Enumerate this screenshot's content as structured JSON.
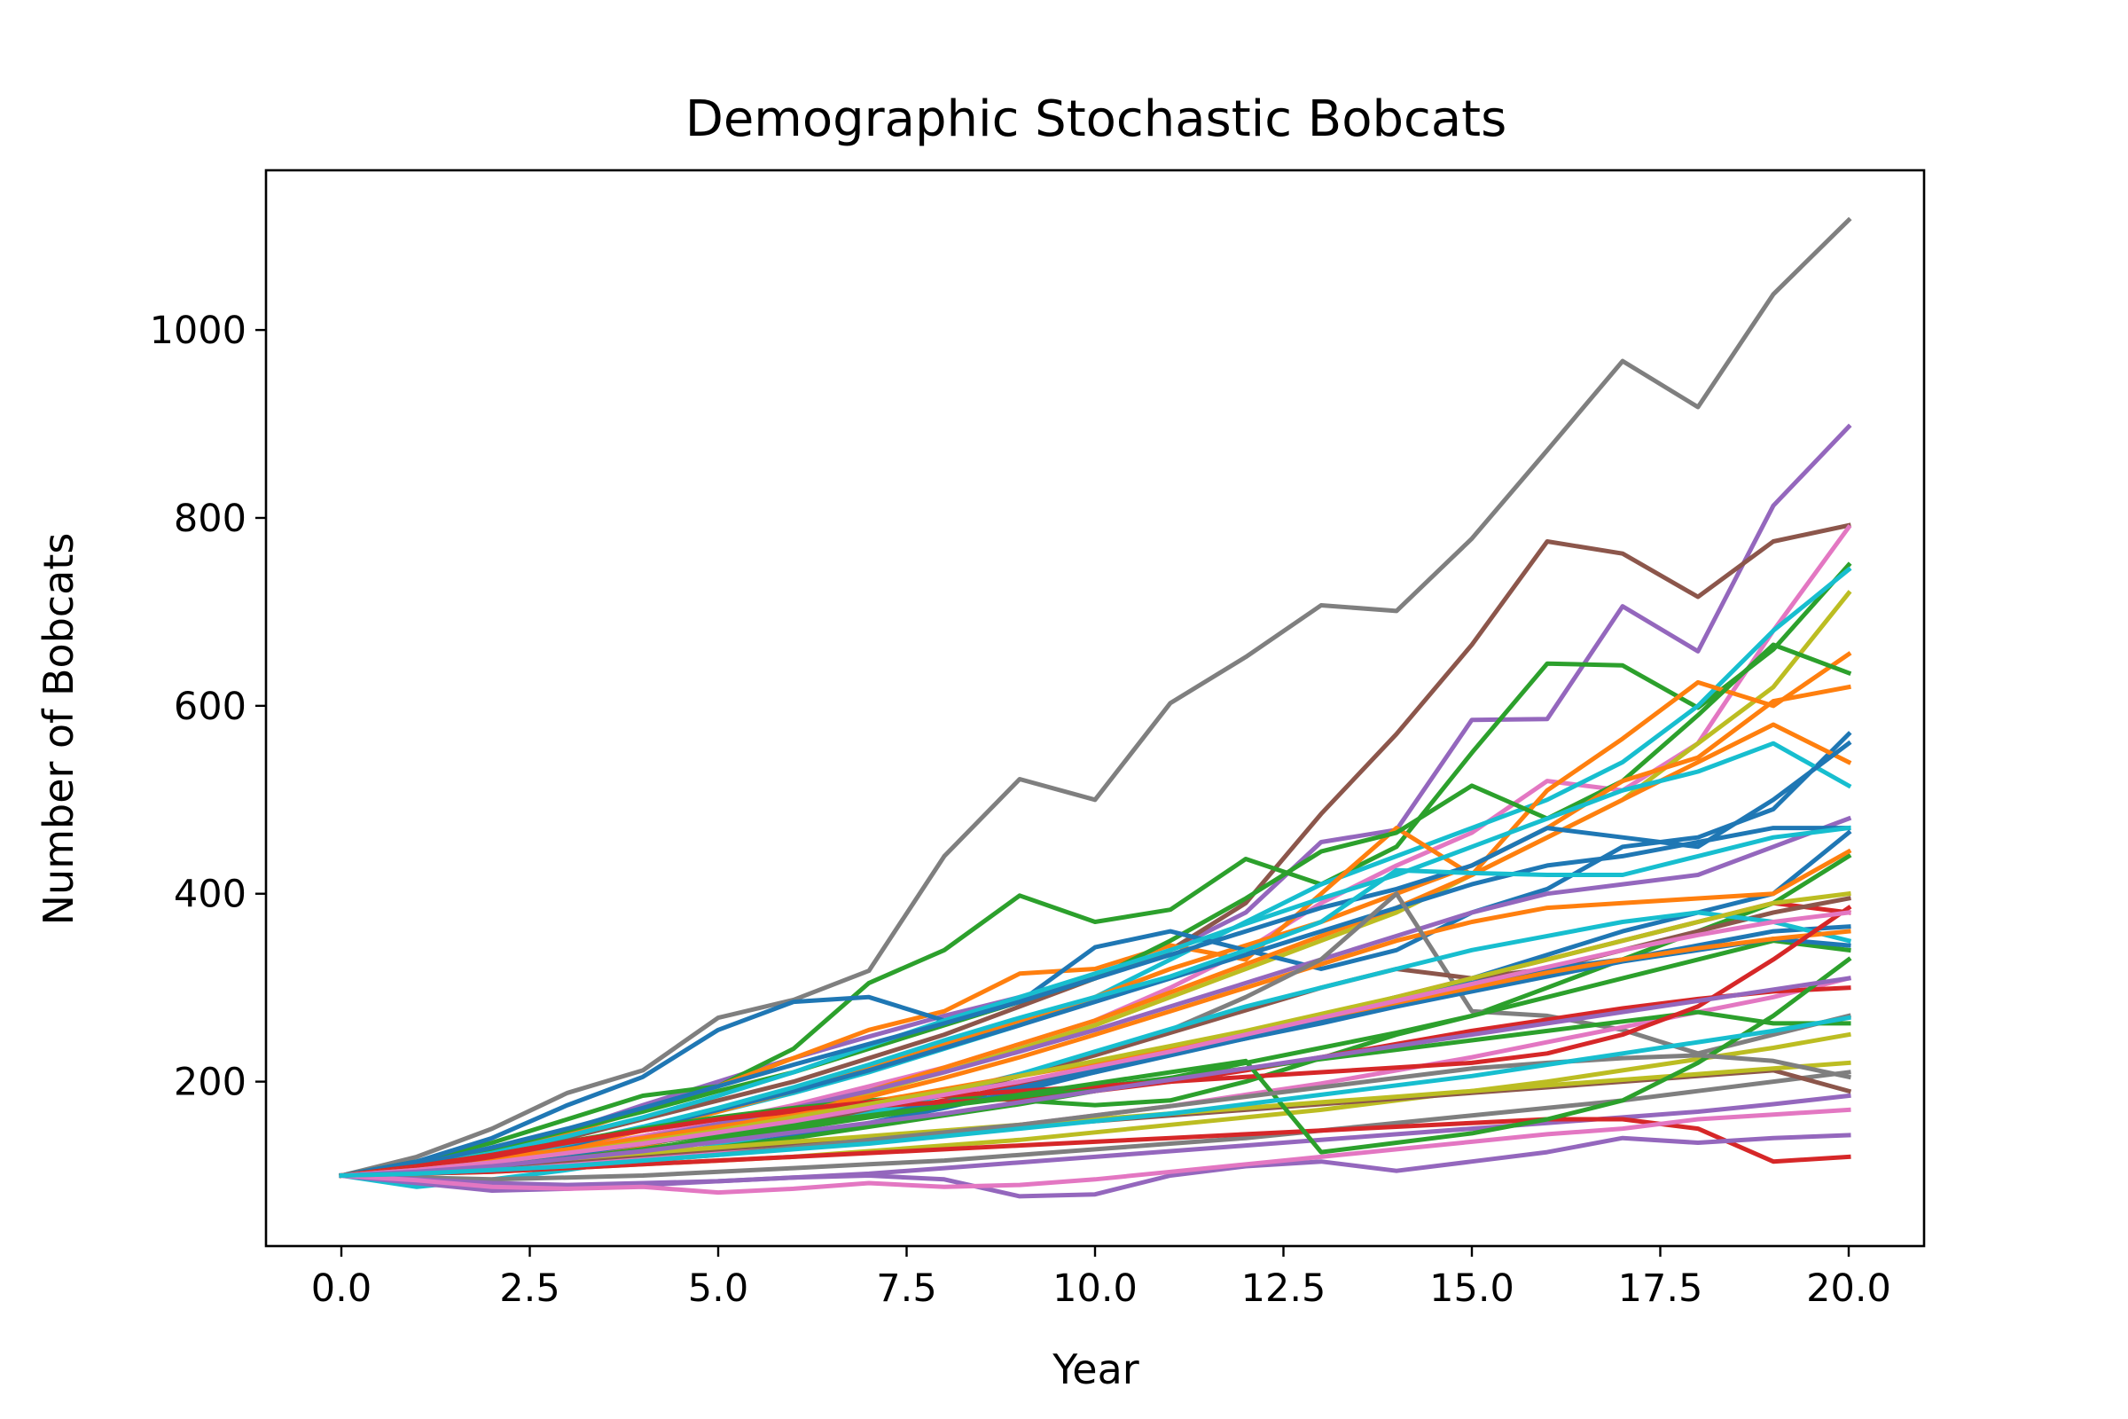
{
  "chart_data": {
    "type": "line",
    "title": "Demographic Stochastic Bobcats",
    "xlabel": "Year",
    "ylabel": "Number of Bobcats",
    "xlim": [
      -1,
      21
    ],
    "ylim": [
      25,
      1170
    ],
    "xticks": [
      0,
      2.5,
      5,
      7.5,
      10,
      12.5,
      15,
      17.5,
      20
    ],
    "xtick_labels": [
      "0.0",
      "2.5",
      "5.0",
      "7.5",
      "10.0",
      "12.5",
      "15.0",
      "17.5",
      "20.0"
    ],
    "yticks": [
      200,
      400,
      600,
      800,
      1000
    ],
    "ytick_labels": [
      "200",
      "400",
      "600",
      "800",
      "1000"
    ],
    "grid": false,
    "legend": "none",
    "x": [
      0,
      1,
      2,
      3,
      4,
      5,
      6,
      7,
      8,
      9,
      10,
      11,
      12,
      13,
      14,
      15,
      16,
      17,
      18,
      19,
      20
    ],
    "series": [
      {
        "color": "#7f7f7f",
        "values": [
          100,
          120,
          150,
          188,
          212,
          268,
          287,
          318,
          440,
          522,
          500,
          603,
          652,
          707,
          701,
          778,
          872,
          967,
          918,
          1038,
          1117
        ]
      },
      {
        "color": "#9467bd",
        "values": [
          100,
          108,
          122,
          148,
          175,
          200,
          225,
          248,
          270,
          290,
          310,
          340,
          380,
          455,
          468,
          585,
          586,
          706,
          658,
          813,
          897
        ]
      },
      {
        "color": "#8c564b",
        "values": [
          100,
          110,
          125,
          140,
          160,
          180,
          200,
          225,
          250,
          280,
          310,
          340,
          390,
          485,
          570,
          665,
          775,
          762,
          716,
          775,
          792
        ]
      },
      {
        "color": "#e377c2",
        "values": [
          100,
          105,
          115,
          128,
          142,
          158,
          175,
          195,
          215,
          240,
          265,
          300,
          340,
          390,
          430,
          465,
          520,
          510,
          560,
          680,
          790
        ]
      },
      {
        "color": "#2ca02c",
        "values": [
          100,
          115,
          135,
          160,
          185,
          195,
          235,
          305,
          340,
          398,
          370,
          383,
          437,
          410,
          450,
          550,
          645,
          643,
          598,
          660,
          750
        ]
      },
      {
        "color": "#17becf",
        "values": [
          100,
          108,
          120,
          135,
          150,
          168,
          188,
          210,
          235,
          260,
          290,
          330,
          370,
          410,
          440,
          470,
          500,
          540,
          600,
          680,
          745
        ]
      },
      {
        "color": "#bcbd22",
        "values": [
          100,
          104,
          112,
          122,
          135,
          150,
          168,
          188,
          210,
          235,
          260,
          290,
          320,
          350,
          380,
          420,
          460,
          500,
          560,
          620,
          720
        ]
      },
      {
        "color": "#ff7f0e",
        "values": [
          100,
          110,
          125,
          145,
          170,
          195,
          225,
          255,
          275,
          315,
          320,
          345,
          330,
          400,
          470,
          420,
          510,
          565,
          625,
          600,
          655
        ]
      },
      {
        "color": "#2ca02c",
        "values": [
          100,
          112,
          128,
          148,
          168,
          190,
          210,
          235,
          260,
          285,
          310,
          350,
          395,
          445,
          465,
          515,
          480,
          520,
          590,
          665,
          635
        ]
      },
      {
        "color": "#ff7f0e",
        "values": [
          100,
          106,
          116,
          130,
          148,
          168,
          190,
          214,
          240,
          265,
          290,
          320,
          345,
          370,
          400,
          430,
          470,
          520,
          545,
          605,
          620
        ]
      },
      {
        "color": "#1f77b4",
        "values": [
          100,
          115,
          140,
          175,
          205,
          255,
          285,
          290,
          265,
          285,
          343,
          360,
          340,
          320,
          340,
          380,
          405,
          450,
          460,
          490,
          570
        ]
      },
      {
        "color": "#ff7f0e",
        "values": [
          100,
          105,
          112,
          120,
          132,
          148,
          168,
          190,
          215,
          240,
          265,
          295,
          325,
          355,
          385,
          420,
          460,
          500,
          540,
          580,
          540
        ]
      },
      {
        "color": "#17becf",
        "values": [
          100,
          110,
          124,
          142,
          162,
          185,
          210,
          238,
          265,
          290,
          315,
          340,
          368,
          395,
          420,
          450,
          480,
          510,
          530,
          560,
          515
        ]
      },
      {
        "color": "#1f77b4",
        "values": [
          100,
          112,
          130,
          150,
          172,
          195,
          218,
          240,
          262,
          285,
          310,
          335,
          360,
          385,
          405,
          430,
          470,
          460,
          450,
          500,
          560
        ]
      },
      {
        "color": "#9467bd",
        "values": [
          100,
          105,
          114,
          126,
          140,
          155,
          172,
          190,
          210,
          232,
          255,
          280,
          305,
          330,
          355,
          380,
          400,
          410,
          420,
          450,
          480
        ]
      },
      {
        "color": "#1f77b4",
        "values": [
          100,
          108,
          118,
          132,
          150,
          170,
          190,
          212,
          236,
          260,
          285,
          310,
          335,
          360,
          385,
          410,
          430,
          440,
          455,
          470,
          470
        ]
      },
      {
        "color": "#17becf",
        "values": [
          100,
          106,
          118,
          134,
          152,
          172,
          194,
          218,
          244,
          268,
          290,
          312,
          340,
          370,
          425,
          422,
          420,
          420,
          440,
          460,
          470
        ]
      },
      {
        "color": "#d62728",
        "values": [
          100,
          104,
          110,
          118,
          128,
          140,
          152,
          166,
          180,
          196,
          212,
          230,
          250,
          270,
          290,
          310,
          330,
          350,
          370,
          390,
          380
        ]
      },
      {
        "color": "#1f77b4",
        "values": [
          100,
          102,
          108,
          116,
          126,
          138,
          150,
          164,
          178,
          194,
          210,
          228,
          246,
          265,
          285,
          310,
          335,
          360,
          380,
          400,
          465
        ]
      },
      {
        "color": "#2ca02c",
        "values": [
          100,
          110,
          122,
          136,
          150,
          162,
          172,
          180,
          185,
          180,
          175,
          180,
          200,
          225,
          250,
          270,
          300,
          330,
          360,
          390,
          440
        ]
      },
      {
        "color": "#ff7f0e",
        "values": [
          100,
          106,
          114,
          124,
          136,
          150,
          166,
          184,
          204,
          226,
          250,
          275,
          300,
          325,
          350,
          370,
          385,
          390,
          395,
          400,
          445
        ]
      },
      {
        "color": "#7f7f7f",
        "values": [
          100,
          104,
          110,
          118,
          128,
          140,
          154,
          170,
          188,
          208,
          230,
          255,
          290,
          330,
          400,
          275,
          270,
          255,
          230,
          250,
          270
        ]
      },
      {
        "color": "#8c564b",
        "values": [
          100,
          103,
          108,
          116,
          126,
          138,
          152,
          168,
          186,
          206,
          228,
          252,
          276,
          300,
          320,
          310,
          320,
          340,
          360,
          380,
          395
        ]
      },
      {
        "color": "#1f77b4",
        "values": [
          100,
          102,
          106,
          112,
          120,
          130,
          142,
          156,
          172,
          190,
          210,
          230,
          250,
          270,
          290,
          305,
          320,
          330,
          345,
          360,
          365
        ]
      },
      {
        "color": "#17becf",
        "values": [
          100,
          88,
          96,
          106,
          118,
          132,
          148,
          166,
          186,
          208,
          232,
          256,
          280,
          300,
          320,
          340,
          355,
          370,
          380,
          370,
          350
        ]
      },
      {
        "color": "#2ca02c",
        "values": [
          100,
          102,
          106,
          112,
          120,
          130,
          140,
          152,
          164,
          176,
          190,
          204,
          220,
          236,
          252,
          270,
          290,
          310,
          330,
          350,
          340
        ]
      },
      {
        "color": "#e377c2",
        "values": [
          100,
          104,
          108,
          112,
          118,
          124,
          130,
          138,
          146,
          154,
          164,
          174,
          186,
          198,
          212,
          226,
          242,
          258,
          274,
          290,
          310
        ]
      },
      {
        "color": "#d62728",
        "values": [
          100,
          110,
          122,
          136,
          148,
          160,
          168,
          174,
          178,
          182,
          190,
          200,
          212,
          226,
          240,
          254,
          266,
          278,
          288,
          296,
          300
        ]
      },
      {
        "color": "#2ca02c",
        "values": [
          100,
          106,
          114,
          124,
          134,
          144,
          154,
          164,
          174,
          184,
          194,
          204,
          214,
          224,
          234,
          244,
          254,
          264,
          274,
          262,
          262
        ]
      },
      {
        "color": "#bcbd22",
        "values": [
          100,
          102,
          104,
          108,
          112,
          116,
          120,
          126,
          132,
          138,
          146,
          154,
          162,
          170,
          180,
          190,
          200,
          212,
          224,
          236,
          250
        ]
      },
      {
        "color": "#7f7f7f",
        "values": [
          100,
          98,
          96,
          98,
          100,
          104,
          108,
          112,
          116,
          122,
          128,
          134,
          140,
          148,
          156,
          164,
          172,
          180,
          190,
          200,
          210
        ]
      },
      {
        "color": "#9467bd",
        "values": [
          100,
          96,
          92,
          90,
          92,
          94,
          98,
          102,
          108,
          114,
          120,
          126,
          132,
          138,
          144,
          150,
          156,
          162,
          168,
          176,
          185
        ]
      },
      {
        "color": "#d62728",
        "values": [
          100,
          102,
          104,
          108,
          112,
          116,
          120,
          124,
          128,
          132,
          136,
          140,
          144,
          148,
          152,
          156,
          160,
          160,
          150,
          115,
          120
        ]
      },
      {
        "color": "#9467bd",
        "values": [
          100,
          92,
          84,
          86,
          90,
          94,
          98,
          100,
          96,
          78,
          80,
          100,
          110,
          115,
          105,
          115,
          125,
          140,
          135,
          140,
          143
        ]
      },
      {
        "color": "#e377c2",
        "values": [
          100,
          95,
          88,
          86,
          88,
          82,
          86,
          92,
          88,
          90,
          96,
          104,
          112,
          120,
          128,
          136,
          144,
          150,
          160,
          165,
          170
        ]
      },
      {
        "color": "#8c564b",
        "values": [
          100,
          104,
          110,
          116,
          122,
          128,
          134,
          140,
          146,
          152,
          158,
          164,
          170,
          176,
          182,
          188,
          194,
          200,
          206,
          212,
          190
        ]
      },
      {
        "color": "#bcbd22",
        "values": [
          100,
          106,
          112,
          118,
          124,
          130,
          136,
          142,
          148,
          154,
          160,
          166,
          172,
          178,
          184,
          190,
          196,
          202,
          208,
          214,
          220
        ]
      },
      {
        "color": "#1f77b4",
        "values": [
          100,
          104,
          112,
          122,
          134,
          146,
          158,
          172,
          186,
          200,
          214,
          230,
          246,
          262,
          280,
          296,
          312,
          328,
          340,
          352,
          345
        ]
      },
      {
        "color": "#ff7f0e",
        "values": [
          100,
          108,
          118,
          128,
          140,
          152,
          164,
          178,
          192,
          206,
          220,
          236,
          252,
          268,
          284,
          300,
          316,
          330,
          342,
          352,
          360
        ]
      },
      {
        "color": "#d62728",
        "values": [
          100,
          108,
          120,
          135,
          148,
          160,
          170,
          178,
          185,
          190,
          195,
          200,
          205,
          210,
          215,
          220,
          230,
          250,
          280,
          330,
          385
        ]
      },
      {
        "color": "#2ca02c",
        "values": [
          100,
          104,
          110,
          118,
          128,
          140,
          150,
          162,
          174,
          186,
          198,
          210,
          222,
          125,
          135,
          145,
          160,
          180,
          220,
          270,
          330
        ]
      },
      {
        "color": "#7f7f7f",
        "values": [
          100,
          102,
          106,
          110,
          116,
          122,
          130,
          138,
          146,
          154,
          164,
          174,
          184,
          194,
          204,
          214,
          220,
          225,
          228,
          222,
          205
        ]
      },
      {
        "color": "#bcbd22",
        "values": [
          100,
          106,
          114,
          124,
          136,
          148,
          162,
          176,
          190,
          206,
          222,
          238,
          254,
          272,
          290,
          310,
          330,
          350,
          370,
          390,
          400
        ]
      },
      {
        "color": "#e377c2",
        "values": [
          100,
          106,
          114,
          124,
          134,
          146,
          158,
          172,
          186,
          200,
          216,
          232,
          250,
          268,
          286,
          304,
          322,
          340,
          356,
          370,
          380
        ]
      },
      {
        "color": "#9467bd",
        "values": [
          100,
          104,
          110,
          118,
          126,
          136,
          146,
          156,
          166,
          178,
          190,
          202,
          214,
          226,
          238,
          250,
          262,
          274,
          286,
          298,
          310
        ]
      },
      {
        "color": "#17becf",
        "values": [
          100,
          102,
          106,
          110,
          116,
          122,
          128,
          134,
          142,
          150,
          158,
          166,
          176,
          186,
          196,
          206,
          218,
          230,
          242,
          254,
          268
        ]
      }
    ]
  }
}
